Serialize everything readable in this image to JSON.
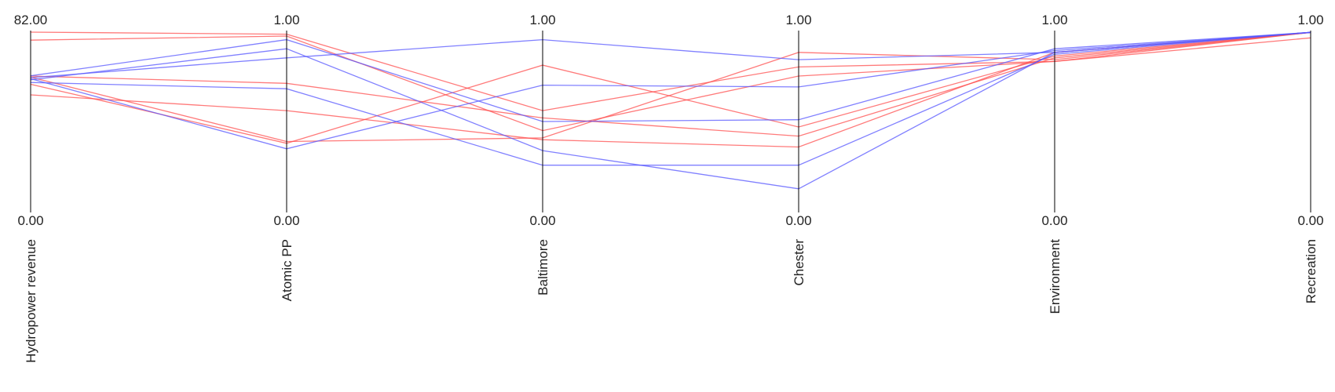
{
  "chart_data": {
    "type": "parallel-coordinates",
    "title": "",
    "axes": [
      {
        "name": "Hydropower revenue",
        "max_label": "82.00",
        "min_label": "0.00",
        "range": [
          0,
          82
        ]
      },
      {
        "name": "Atomic PP",
        "max_label": "1.00",
        "min_label": "0.00",
        "range": [
          0,
          1
        ]
      },
      {
        "name": "Baltimore",
        "max_label": "1.00",
        "min_label": "0.00",
        "range": [
          0,
          1
        ]
      },
      {
        "name": "Chester",
        "max_label": "1.00",
        "min_label": "0.00",
        "range": [
          0,
          1
        ]
      },
      {
        "name": "Environment",
        "max_label": "1.00",
        "min_label": "0.00",
        "range": [
          0,
          1
        ]
      },
      {
        "name": "Recreation",
        "max_label": "1.00",
        "min_label": "0.00",
        "range": [
          0,
          1
        ]
      }
    ],
    "colors": {
      "red": "#ff4d4d",
      "blue": "#5555ff",
      "axis": "#000000"
    },
    "series": [
      {
        "color": "red",
        "values": [
          81.3,
          0.98,
          0.56,
          0.8,
          0.83,
          0.96
        ]
      },
      {
        "color": "red",
        "values": [
          77.7,
          0.97,
          0.45,
          0.75,
          0.83,
          0.99
        ]
      },
      {
        "color": "red",
        "values": [
          61.5,
          0.71,
          0.52,
          0.42,
          0.85,
          0.99
        ]
      },
      {
        "color": "red",
        "values": [
          53.0,
          0.56,
          0.4,
          0.36,
          0.88,
          0.99
        ]
      },
      {
        "color": "red",
        "values": [
          57.8,
          0.38,
          0.81,
          0.47,
          0.86,
          0.99
        ]
      },
      {
        "color": "red",
        "values": [
          61.0,
          0.39,
          0.41,
          0.88,
          0.84,
          0.99
        ]
      },
      {
        "color": "blue",
        "values": [
          61.6,
          0.95,
          0.5,
          0.51,
          0.9,
          0.99
        ]
      },
      {
        "color": "blue",
        "values": [
          59.8,
          0.9,
          0.34,
          0.13,
          0.88,
          0.99
        ]
      },
      {
        "color": "blue",
        "values": [
          58.6,
          0.68,
          0.26,
          0.26,
          0.87,
          0.99
        ]
      },
      {
        "color": "blue",
        "values": [
          60.3,
          0.35,
          0.7,
          0.69,
          0.89,
          0.99
        ]
      },
      {
        "color": "blue",
        "values": [
          60.8,
          0.85,
          0.95,
          0.84,
          0.88,
          0.99
        ]
      }
    ]
  }
}
